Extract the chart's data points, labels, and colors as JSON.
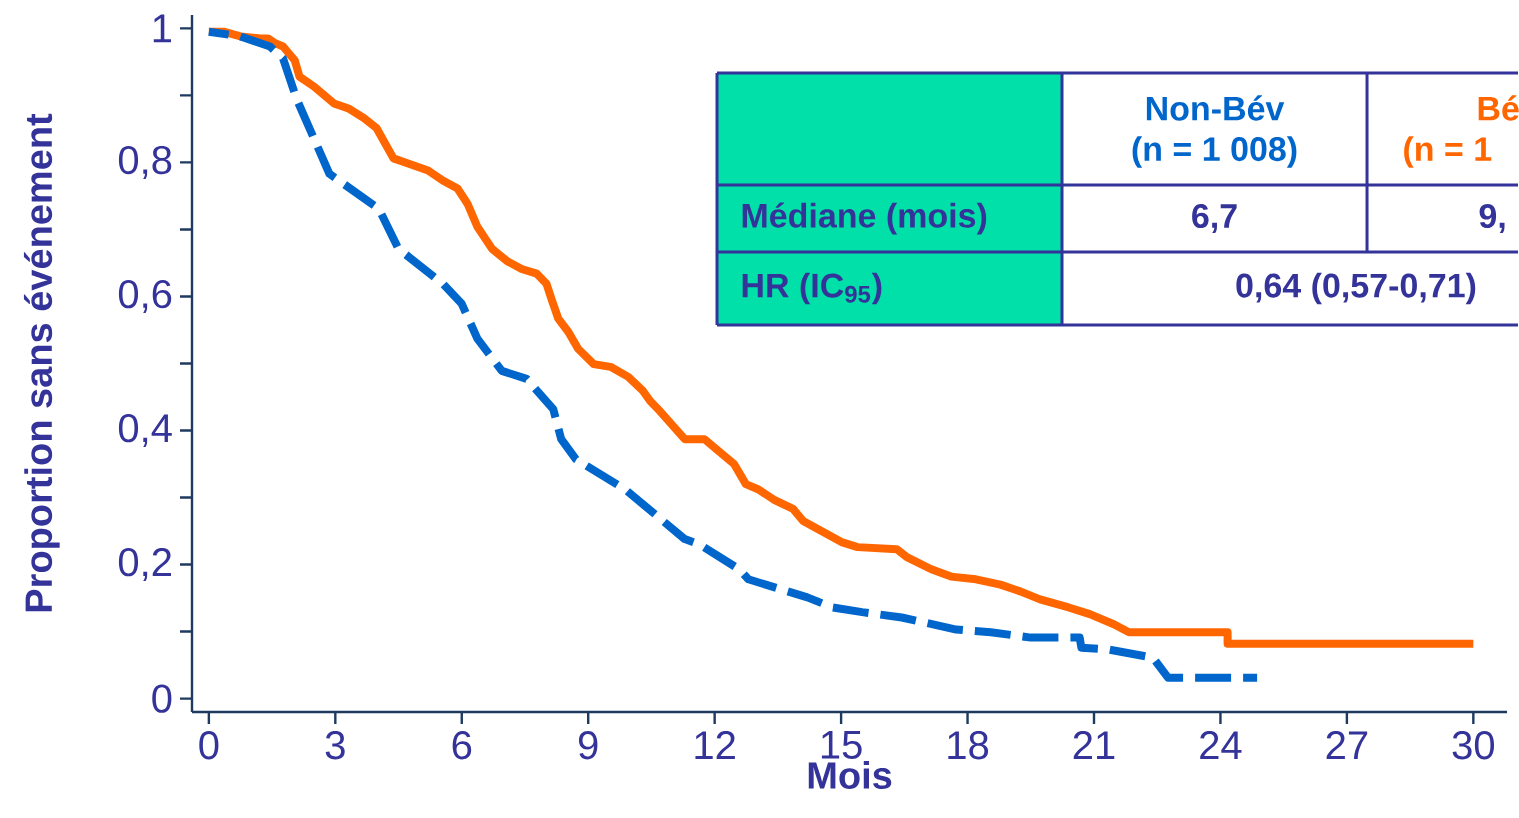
{
  "chart_data": {
    "type": "line",
    "xlabel": "Mois",
    "ylabel": "Proportion sans événement",
    "xlim": [
      -0.4,
      30.8
    ],
    "ylim": [
      -0.02,
      1.02
    ],
    "xticks": [
      0,
      3,
      6,
      9,
      12,
      15,
      18,
      21,
      24,
      27,
      30
    ],
    "yticks": [
      {
        "value": 0,
        "label": "0"
      },
      {
        "value": 0.1,
        "label": null
      },
      {
        "value": 0.2,
        "label": "0,2"
      },
      {
        "value": 0.3,
        "label": null
      },
      {
        "value": 0.4,
        "label": "0,4"
      },
      {
        "value": 0.5,
        "label": null
      },
      {
        "value": 0.6,
        "label": "0,6"
      },
      {
        "value": 0.7,
        "label": null
      },
      {
        "value": 0.8,
        "label": "0,8"
      },
      {
        "value": 0.9,
        "label": null
      },
      {
        "value": 1,
        "label": "1"
      }
    ],
    "series": [
      {
        "name": "Non-Bév",
        "color": "#0066cc",
        "line_style": "dashed",
        "x": [
          0,
          0.75,
          1.45,
          1.76,
          2.08,
          2.86,
          4.03,
          4.5,
          5.55,
          6.0,
          6.37,
          6.95,
          7.54,
          8.17,
          8.36,
          8.71,
          9.88,
          11.29,
          11.64,
          12.58,
          12.8,
          14.2,
          14.8,
          15.5,
          16.44,
          17.73,
          18.55,
          19.5,
          20.66,
          20.7,
          21.36,
          22.4,
          22.76,
          24.87
        ],
        "values": [
          0.995,
          0.988,
          0.973,
          0.955,
          0.895,
          0.783,
          0.731,
          0.671,
          0.619,
          0.589,
          0.537,
          0.489,
          0.477,
          0.432,
          0.387,
          0.357,
          0.312,
          0.238,
          0.23,
          0.193,
          0.178,
          0.151,
          0.136,
          0.129,
          0.121,
          0.103,
          0.099,
          0.091,
          0.091,
          0.076,
          0.073,
          0.061,
          0.031,
          0.031
        ]
      },
      {
        "name": "Bé",
        "color": "#ff6600",
        "line_style": "solid",
        "x": [
          0,
          0.35,
          0.75,
          1.22,
          1.4,
          1.57,
          1.76,
          2.04,
          2.15,
          2.5,
          2.97,
          3.33,
          3.68,
          3.98,
          4.38,
          4.61,
          5.2,
          5.55,
          5.9,
          6.14,
          6.37,
          6.72,
          7.07,
          7.42,
          7.78,
          8.01,
          8.13,
          8.29,
          8.53,
          8.76,
          9.13,
          9.53,
          9.95,
          10.3,
          10.47,
          10.7,
          11.29,
          11.76,
          12.46,
          12.74,
          13.04,
          13.4,
          13.86,
          14.1,
          15.03,
          15.39,
          16.32,
          16.56,
          17.14,
          17.61,
          18.2,
          18.78,
          19.25,
          19.72,
          20.4,
          20.9,
          21.47,
          21.83,
          24.17,
          24.17,
          30
        ],
        "values": [
          0.995,
          0.995,
          0.988,
          0.985,
          0.985,
          0.978,
          0.973,
          0.952,
          0.928,
          0.913,
          0.888,
          0.88,
          0.866,
          0.851,
          0.806,
          0.801,
          0.788,
          0.773,
          0.761,
          0.738,
          0.704,
          0.671,
          0.653,
          0.641,
          0.634,
          0.619,
          0.596,
          0.567,
          0.547,
          0.522,
          0.499,
          0.495,
          0.48,
          0.459,
          0.444,
          0.429,
          0.387,
          0.387,
          0.35,
          0.32,
          0.312,
          0.297,
          0.283,
          0.265,
          0.233,
          0.226,
          0.223,
          0.211,
          0.193,
          0.182,
          0.178,
          0.17,
          0.16,
          0.148,
          0.136,
          0.126,
          0.111,
          0.099,
          0.099,
          0.082,
          0.082
        ]
      }
    ],
    "annotations": [
      "(n = 1 008)",
      "(n = 1",
      "Médiane (mois)",
      "6,7",
      "9,",
      "HR (IC$_{95}$)",
      "0,64 (0,57-0,71)"
    ]
  }
}
